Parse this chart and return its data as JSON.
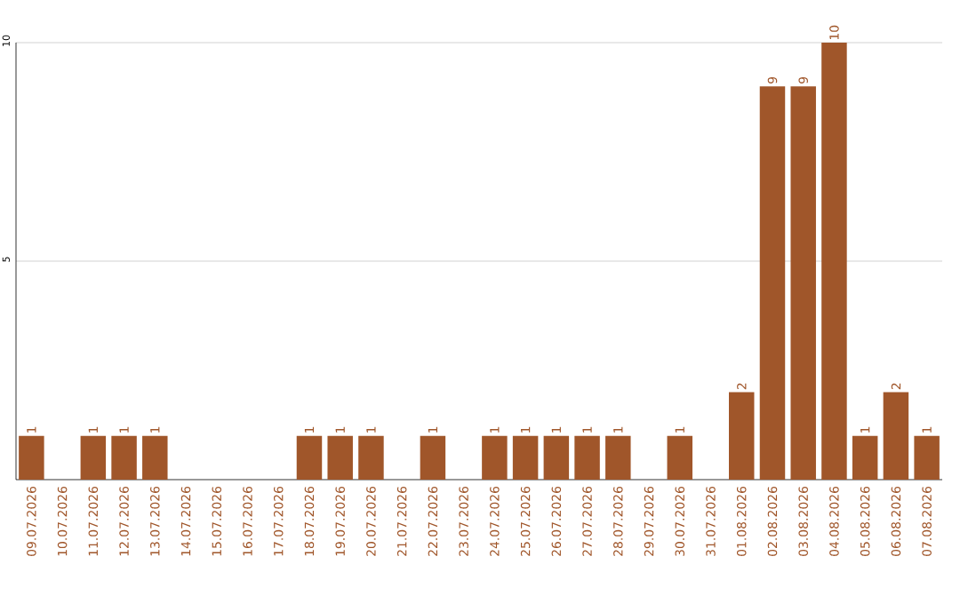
{
  "chart_data": {
    "type": "bar",
    "categories": [
      "09.07.2026",
      "10.07.2026",
      "11.07.2026",
      "12.07.2026",
      "13.07.2026",
      "14.07.2026",
      "15.07.2026",
      "16.07.2026",
      "17.07.2026",
      "18.07.2026",
      "19.07.2026",
      "20.07.2026",
      "21.07.2026",
      "22.07.2026",
      "23.07.2026",
      "24.07.2026",
      "25.07.2026",
      "26.07.2026",
      "27.07.2026",
      "28.07.2026",
      "29.07.2026",
      "30.07.2026",
      "31.07.2026",
      "01.08.2026",
      "02.08.2026",
      "03.08.2026",
      "04.08.2026",
      "05.08.2026",
      "06.08.2026",
      "07.08.2026"
    ],
    "values": [
      1,
      0,
      1,
      1,
      1,
      0,
      0,
      0,
      0,
      1,
      1,
      1,
      0,
      1,
      0,
      1,
      1,
      1,
      1,
      1,
      0,
      1,
      0,
      2,
      9,
      9,
      10,
      1,
      2,
      1
    ],
    "value_labels": [
      "1",
      null,
      "1",
      "1",
      "1",
      null,
      null,
      null,
      null,
      "1",
      "1",
      "1",
      null,
      "1",
      null,
      "1",
      "1",
      "1",
      "1",
      "1",
      null,
      "1",
      null,
      "2",
      "9",
      "9",
      "10",
      "1",
      "2",
      "1"
    ],
    "color": "#a0562a",
    "ylim": [
      0,
      10
    ],
    "yticks": [
      5,
      10
    ],
    "grid": "y"
  }
}
